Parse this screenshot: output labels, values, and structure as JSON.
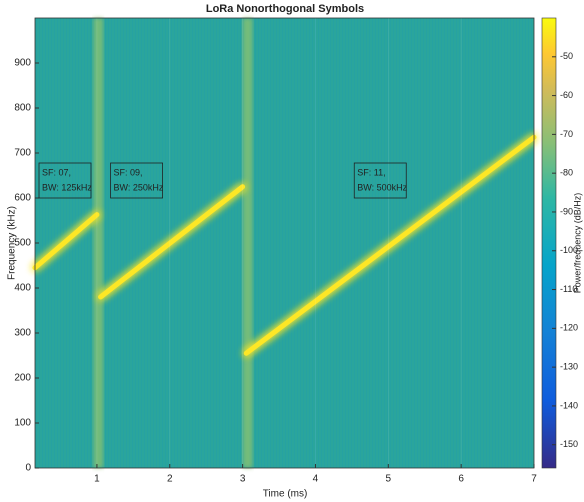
{
  "chart_data": {
    "type": "spectrogram",
    "title": "LoRa Nonorthogonal Symbols",
    "x_label": "Time (ms)",
    "y_label": "Frequency (kHz)",
    "colorbar_label": "Power/frequency (dB/Hz)",
    "xlim": [
      0.15,
      7
    ],
    "xticks": [
      1,
      2,
      3,
      4,
      5,
      6,
      7
    ],
    "ylim": [
      0,
      1000
    ],
    "yticks": [
      0,
      100,
      200,
      300,
      400,
      500,
      600,
      700,
      800,
      900
    ],
    "clim": [
      -156,
      -40
    ],
    "cticks": [
      -150,
      -140,
      -130,
      -120,
      -110,
      -100,
      -90,
      -80,
      -70,
      -60,
      -50
    ],
    "grid": true,
    "background_color": "#2aa59c",
    "chirp_color": "#fde725",
    "chirps": [
      {
        "x": [
          0.15,
          1.0
        ],
        "y": [
          445,
          563
        ]
      },
      {
        "x": [
          1.05,
          3.0
        ],
        "y": [
          380,
          625
        ]
      },
      {
        "x": [
          3.05,
          7.0
        ],
        "y": [
          255,
          735
        ]
      }
    ],
    "bursts_x": [
      1.02,
      3.07
    ],
    "annotations": [
      [
        "SF: 07,",
        "BW: 125kHz"
      ],
      [
        "SF: 09,",
        "BW: 250kHz"
      ],
      [
        "SF: 11,",
        "BW: 500kHz"
      ]
    ]
  }
}
